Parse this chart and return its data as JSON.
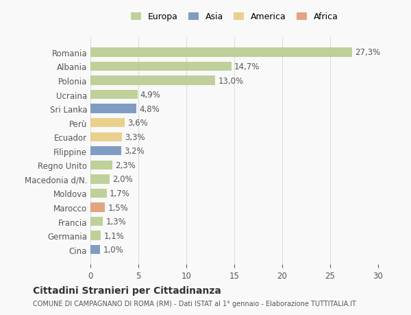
{
  "categories": [
    "Romania",
    "Albania",
    "Polonia",
    "Ucraina",
    "Sri Lanka",
    "Perù",
    "Ecuador",
    "Filippine",
    "Regno Unito",
    "Macedonia d/N.",
    "Moldova",
    "Marocco",
    "Francia",
    "Germania",
    "Cina"
  ],
  "values": [
    27.3,
    14.7,
    13.0,
    4.9,
    4.8,
    3.6,
    3.3,
    3.2,
    2.3,
    2.0,
    1.7,
    1.5,
    1.3,
    1.1,
    1.0
  ],
  "labels": [
    "27,3%",
    "14,7%",
    "13,0%",
    "4,9%",
    "4,8%",
    "3,6%",
    "3,3%",
    "3,2%",
    "2,3%",
    "2,0%",
    "1,7%",
    "1,5%",
    "1,3%",
    "1,1%",
    "1,0%"
  ],
  "colors": [
    "#b5c98a",
    "#b5c98a",
    "#b5c98a",
    "#b5c98a",
    "#6b8cba",
    "#e8c97a",
    "#e8c97a",
    "#6b8cba",
    "#b5c98a",
    "#b5c98a",
    "#b5c98a",
    "#e0956a",
    "#b5c98a",
    "#b5c98a",
    "#6b8cba"
  ],
  "legend_colors": {
    "Europa": "#b5c98a",
    "Asia": "#6b8cba",
    "America": "#e8c97a",
    "Africa": "#e0956a"
  },
  "legend_order": [
    "Europa",
    "Asia",
    "America",
    "Africa"
  ],
  "title": "Cittadini Stranieri per Cittadinanza",
  "subtitle": "COMUNE DI CAMPAGNANO DI ROMA (RM) - Dati ISTAT al 1° gennaio - Elaborazione TUTTITALIA.IT",
  "xlim": [
    0,
    30
  ],
  "xticks": [
    0,
    5,
    10,
    15,
    20,
    25,
    30
  ],
  "background_color": "#f9f9f9",
  "grid_color": "#dddddd",
  "bar_alpha": 0.85
}
